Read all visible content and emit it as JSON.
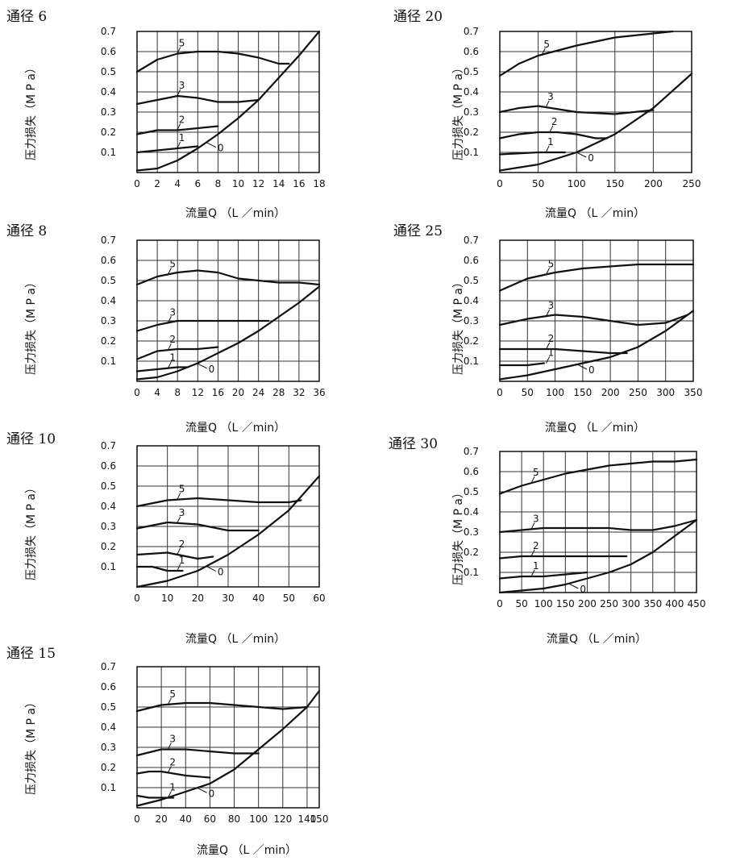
{
  "line_color": "#111111",
  "grid_color": "#333333",
  "chart_data": [
    {
      "type": "line",
      "title": "通径 6",
      "ylabel": "压力损失（M P a）",
      "xlabel": "流量Q （L ／min）",
      "xlim": [
        0,
        18
      ],
      "ylim": [
        0,
        0.7
      ],
      "xticks": [
        0,
        2,
        4,
        6,
        8,
        10,
        12,
        14,
        16,
        18
      ],
      "xtick_labels": [
        "0",
        "2",
        "4",
        "6",
        "8",
        "10",
        "12",
        "14",
        "16",
        "18"
      ],
      "yticks": [
        0.1,
        0.2,
        0.3,
        0.4,
        0.5,
        0.6,
        0.7
      ],
      "ytick_labels": [
        "0.1",
        "0.2",
        "0.3",
        "0.4",
        "0.5",
        "0.6",
        "0.7"
      ],
      "grid": true,
      "series": [
        {
          "name": "5",
          "x": [
            0,
            2,
            4,
            6,
            8,
            10,
            12,
            14,
            15
          ],
          "y": [
            0.5,
            0.56,
            0.59,
            0.6,
            0.6,
            0.59,
            0.57,
            0.54,
            0.54
          ]
        },
        {
          "name": "3",
          "x": [
            0,
            2,
            4,
            6,
            8,
            10,
            12
          ],
          "y": [
            0.34,
            0.36,
            0.38,
            0.37,
            0.35,
            0.35,
            0.36
          ]
        },
        {
          "name": "2",
          "x": [
            0,
            2,
            4,
            6,
            8
          ],
          "y": [
            0.19,
            0.21,
            0.21,
            0.22,
            0.23
          ]
        },
        {
          "name": "1",
          "x": [
            0,
            2,
            4,
            6
          ],
          "y": [
            0.1,
            0.11,
            0.12,
            0.13
          ]
        },
        {
          "name": "0",
          "x": [
            0,
            2,
            4,
            6,
            8,
            10,
            12,
            14,
            16,
            18
          ],
          "y": [
            0.01,
            0.02,
            0.06,
            0.12,
            0.19,
            0.27,
            0.36,
            0.47,
            0.58,
            0.7
          ]
        }
      ]
    },
    {
      "type": "line",
      "title": "通径 20",
      "ylabel": "压力损失（M P a）",
      "xlabel": "流量Q （L ／min）",
      "xlim": [
        0,
        250
      ],
      "ylim": [
        0,
        0.7
      ],
      "xticks": [
        0,
        50,
        100,
        150,
        200,
        250
      ],
      "xtick_labels": [
        "0",
        "50",
        "100",
        "150",
        "200",
        "250"
      ],
      "yticks": [
        0.1,
        0.2,
        0.3,
        0.4,
        0.5,
        0.6,
        0.7
      ],
      "ytick_labels": [
        "0.1",
        "0.2",
        "0.3",
        "0.4",
        "0.5",
        "0.6",
        "0.7"
      ],
      "grid": true,
      "series": [
        {
          "name": "5",
          "x": [
            0,
            25,
            50,
            100,
            150,
            200,
            225
          ],
          "y": [
            0.48,
            0.54,
            0.58,
            0.63,
            0.67,
            0.69,
            0.7
          ]
        },
        {
          "name": "3",
          "x": [
            0,
            25,
            50,
            100,
            150,
            200
          ],
          "y": [
            0.3,
            0.32,
            0.33,
            0.3,
            0.29,
            0.31
          ]
        },
        {
          "name": "2",
          "x": [
            0,
            25,
            50,
            75,
            100,
            125,
            140
          ],
          "y": [
            0.17,
            0.19,
            0.2,
            0.2,
            0.19,
            0.17,
            0.17
          ]
        },
        {
          "name": "1",
          "x": [
            0,
            50,
            75,
            85
          ],
          "y": [
            0.09,
            0.1,
            0.1,
            0.1
          ]
        },
        {
          "name": "0",
          "x": [
            0,
            50,
            100,
            150,
            200,
            250
          ],
          "y": [
            0.01,
            0.04,
            0.1,
            0.19,
            0.32,
            0.49
          ]
        }
      ]
    },
    {
      "type": "line",
      "title": "通径 8",
      "ylabel": "压力损失（M P a）",
      "xlabel": "流量Q （L ／min）",
      "xlim": [
        0,
        36
      ],
      "ylim": [
        0,
        0.7
      ],
      "xticks": [
        0,
        4,
        8,
        12,
        16,
        20,
        24,
        28,
        32,
        36
      ],
      "xtick_labels": [
        "0",
        "4",
        "8",
        "12",
        "16",
        "20",
        "24",
        "28",
        "32",
        "36"
      ],
      "yticks": [
        0.1,
        0.2,
        0.3,
        0.4,
        0.5,
        0.6,
        0.7
      ],
      "ytick_labels": [
        "0.1",
        "0.2",
        "0.3",
        "0.4",
        "0.5",
        "0.6",
        "0.7"
      ],
      "grid": true,
      "series": [
        {
          "name": "5",
          "x": [
            0,
            4,
            8,
            12,
            16,
            20,
            24,
            28,
            32,
            36
          ],
          "y": [
            0.48,
            0.52,
            0.54,
            0.55,
            0.54,
            0.51,
            0.5,
            0.49,
            0.49,
            0.48
          ]
        },
        {
          "name": "3",
          "x": [
            0,
            4,
            8,
            12,
            16,
            20,
            24,
            26
          ],
          "y": [
            0.25,
            0.28,
            0.3,
            0.3,
            0.3,
            0.3,
            0.3,
            0.3
          ]
        },
        {
          "name": "2",
          "x": [
            0,
            4,
            8,
            12,
            16
          ],
          "y": [
            0.11,
            0.15,
            0.16,
            0.16,
            0.17
          ]
        },
        {
          "name": "1",
          "x": [
            0,
            4,
            8,
            10
          ],
          "y": [
            0.05,
            0.06,
            0.07,
            0.07
          ]
        },
        {
          "name": "0",
          "x": [
            0,
            4,
            8,
            12,
            16,
            20,
            24,
            28,
            32,
            36
          ],
          "y": [
            0.01,
            0.02,
            0.05,
            0.09,
            0.14,
            0.19,
            0.25,
            0.32,
            0.39,
            0.47
          ]
        }
      ]
    },
    {
      "type": "line",
      "title": "通径 25",
      "ylabel": "压力损失（M P a）",
      "xlabel": "流量Q （L ／min）",
      "xlim": [
        0,
        350
      ],
      "ylim": [
        0,
        0.7
      ],
      "xticks": [
        0,
        50,
        100,
        150,
        200,
        250,
        300,
        350
      ],
      "xtick_labels": [
        "0",
        "50",
        "100",
        "150",
        "200",
        "250",
        "300",
        "350"
      ],
      "yticks": [
        0.1,
        0.2,
        0.3,
        0.4,
        0.5,
        0.6,
        0.7
      ],
      "ytick_labels": [
        "0.1",
        "0.2",
        "0.3",
        "0.4",
        "0.5",
        "0.6",
        "0.7"
      ],
      "grid": true,
      "series": [
        {
          "name": "5",
          "x": [
            0,
            50,
            100,
            150,
            200,
            250,
            300,
            350
          ],
          "y": [
            0.45,
            0.51,
            0.54,
            0.56,
            0.57,
            0.58,
            0.58,
            0.58
          ]
        },
        {
          "name": "3",
          "x": [
            0,
            50,
            100,
            150,
            200,
            250,
            300,
            340
          ],
          "y": [
            0.28,
            0.31,
            0.33,
            0.32,
            0.3,
            0.28,
            0.29,
            0.33
          ]
        },
        {
          "name": "2",
          "x": [
            0,
            50,
            100,
            150,
            200,
            230
          ],
          "y": [
            0.16,
            0.16,
            0.16,
            0.15,
            0.14,
            0.14
          ]
        },
        {
          "name": "1",
          "x": [
            0,
            50,
            80
          ],
          "y": [
            0.08,
            0.08,
            0.09
          ]
        },
        {
          "name": "0",
          "x": [
            0,
            50,
            100,
            150,
            200,
            250,
            300,
            350
          ],
          "y": [
            0.01,
            0.03,
            0.06,
            0.09,
            0.12,
            0.17,
            0.25,
            0.35
          ]
        }
      ]
    },
    {
      "type": "line",
      "title": "通径 10",
      "ylabel": "压力损失（M P a）",
      "xlabel": "流量Q （L ／min）",
      "xlim": [
        0,
        60
      ],
      "ylim": [
        0,
        0.7
      ],
      "xticks": [
        0,
        10,
        20,
        30,
        40,
        50,
        60
      ],
      "xtick_labels": [
        "0",
        "10",
        "20",
        "30",
        "40",
        "50",
        "60"
      ],
      "yticks": [
        0.1,
        0.2,
        0.3,
        0.4,
        0.5,
        0.6,
        0.7
      ],
      "ytick_labels": [
        "0.1",
        "0.2",
        "0.3",
        "0.4",
        "0.5",
        "0.6",
        "0.7"
      ],
      "grid": true,
      "series": [
        {
          "name": "5",
          "x": [
            0,
            10,
            20,
            30,
            40,
            50,
            54
          ],
          "y": [
            0.4,
            0.43,
            0.44,
            0.43,
            0.42,
            0.42,
            0.43
          ]
        },
        {
          "name": "3",
          "x": [
            0,
            10,
            20,
            30,
            40
          ],
          "y": [
            0.29,
            0.32,
            0.31,
            0.28,
            0.28
          ]
        },
        {
          "name": "2",
          "x": [
            0,
            10,
            20,
            25
          ],
          "y": [
            0.16,
            0.17,
            0.14,
            0.15
          ]
        },
        {
          "name": "1",
          "x": [
            0,
            5,
            10,
            15
          ],
          "y": [
            0.1,
            0.1,
            0.08,
            0.08
          ]
        },
        {
          "name": "0",
          "x": [
            0,
            10,
            20,
            30,
            40,
            50,
            60
          ],
          "y": [
            0.0,
            0.03,
            0.08,
            0.16,
            0.26,
            0.38,
            0.55
          ]
        }
      ]
    },
    {
      "type": "line",
      "title": "通径 30",
      "ylabel": "压力损失（M P a）",
      "xlabel": "流量Q （L ／min）",
      "xlim": [
        0,
        450
      ],
      "ylim": [
        0,
        0.7
      ],
      "xticks": [
        0,
        50,
        100,
        150,
        200,
        250,
        300,
        350,
        400,
        450
      ],
      "xtick_labels": [
        "0",
        "50",
        "100",
        "150",
        "200",
        "250",
        "300",
        "350",
        "400",
        "450"
      ],
      "yticks": [
        0.1,
        0.2,
        0.3,
        0.4,
        0.5,
        0.6,
        0.7
      ],
      "ytick_labels": [
        "0.1",
        "0.2",
        "0.3",
        "0.4",
        "0.5",
        "0.6",
        "0.7"
      ],
      "grid": true,
      "series": [
        {
          "name": "5",
          "x": [
            0,
            50,
            100,
            150,
            200,
            250,
            300,
            350,
            400,
            450
          ],
          "y": [
            0.49,
            0.53,
            0.56,
            0.59,
            0.61,
            0.63,
            0.64,
            0.65,
            0.65,
            0.66
          ]
        },
        {
          "name": "3",
          "x": [
            0,
            50,
            100,
            150,
            200,
            250,
            300,
            350,
            400,
            450
          ],
          "y": [
            0.3,
            0.31,
            0.32,
            0.32,
            0.32,
            0.32,
            0.31,
            0.31,
            0.33,
            0.36
          ]
        },
        {
          "name": "2",
          "x": [
            0,
            50,
            100,
            150,
            200,
            250,
            290
          ],
          "y": [
            0.17,
            0.18,
            0.18,
            0.18,
            0.18,
            0.18,
            0.18
          ]
        },
        {
          "name": "1",
          "x": [
            0,
            50,
            100,
            150,
            200
          ],
          "y": [
            0.07,
            0.08,
            0.08,
            0.09,
            0.1
          ]
        },
        {
          "name": "0",
          "x": [
            0,
            100,
            150,
            200,
            250,
            300,
            350,
            400,
            450
          ],
          "y": [
            0.0,
            0.02,
            0.04,
            0.07,
            0.1,
            0.14,
            0.2,
            0.28,
            0.36
          ]
        }
      ]
    },
    {
      "type": "line",
      "title": "通径 15",
      "ylabel": "压力损失（M P a）",
      "xlabel": "流量Q （L ／min）",
      "xlim": [
        0,
        150
      ],
      "ylim": [
        0,
        0.7
      ],
      "xticks": [
        0,
        20,
        40,
        60,
        80,
        100,
        120,
        140,
        150
      ],
      "xtick_labels": [
        "0",
        "20",
        "40",
        "60",
        "80",
        "100",
        "120",
        "140",
        "150"
      ],
      "yticks": [
        0.1,
        0.2,
        0.3,
        0.4,
        0.5,
        0.6,
        0.7
      ],
      "ytick_labels": [
        "0.1",
        "0.2",
        "0.3",
        "0.4",
        "0.5",
        "0.6",
        "0.7"
      ],
      "grid": true,
      "series": [
        {
          "name": "5",
          "x": [
            0,
            20,
            40,
            60,
            80,
            100,
            120,
            140
          ],
          "y": [
            0.48,
            0.51,
            0.52,
            0.52,
            0.51,
            0.5,
            0.49,
            0.5
          ]
        },
        {
          "name": "3",
          "x": [
            0,
            20,
            40,
            60,
            80,
            100
          ],
          "y": [
            0.26,
            0.29,
            0.29,
            0.28,
            0.27,
            0.27
          ]
        },
        {
          "name": "2",
          "x": [
            0,
            10,
            20,
            40,
            60
          ],
          "y": [
            0.17,
            0.18,
            0.18,
            0.16,
            0.15
          ]
        },
        {
          "name": "1",
          "x": [
            0,
            10,
            20,
            30
          ],
          "y": [
            0.06,
            0.05,
            0.05,
            0.05
          ]
        },
        {
          "name": "0",
          "x": [
            0,
            20,
            40,
            60,
            80,
            100,
            120,
            140,
            150
          ],
          "y": [
            0.01,
            0.04,
            0.08,
            0.12,
            0.19,
            0.29,
            0.39,
            0.5,
            0.58
          ]
        }
      ]
    }
  ]
}
